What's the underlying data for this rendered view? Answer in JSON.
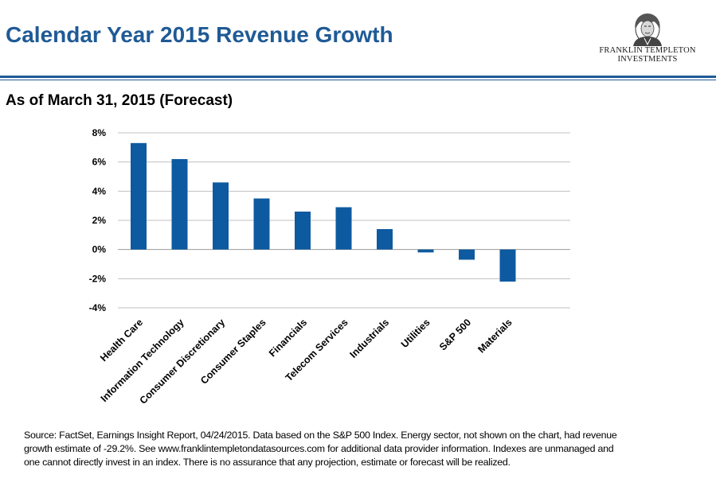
{
  "header": {
    "title": "Calendar Year 2015 Revenue Growth",
    "subtitle": "As of March 31, 2015 (Forecast)"
  },
  "logo": {
    "line1": "FRANKLIN TEMPLETON",
    "line2": "INVESTMENTS"
  },
  "colors": {
    "title": "#1f5a96",
    "bar": "#0e5aa0",
    "grid": "#c0c0c0"
  },
  "chart_data": {
    "type": "bar",
    "title": "",
    "xlabel": "",
    "ylabel": "",
    "categories": [
      "Health Care",
      "Information Technology",
      "Consumer Discretionary",
      "Consumer Staples",
      "Financials",
      "Telecom Services",
      "Industrials",
      "Utilities",
      "S&P 500",
      "Materials"
    ],
    "values": [
      7.3,
      6.2,
      4.6,
      3.5,
      2.6,
      2.9,
      1.4,
      -0.2,
      -0.7,
      -2.2
    ],
    "ylim": [
      -4,
      8
    ],
    "yticks": [
      8,
      6,
      4,
      2,
      0,
      -2,
      -4
    ],
    "ytick_labels": [
      "8%",
      "6%",
      "4%",
      "2%",
      "0%",
      "-2%",
      "-4%"
    ],
    "grid": true
  },
  "footer": {
    "source": "Source: FactSet, Earnings Insight Report, 04/24/2015. Data based on the S&P 500 Index. Energy sector, not shown on the chart, had revenue growth estimate of -29.2%. See www.franklintempletondatasources.com for additional data provider information. Indexes are unmanaged and one cannot directly invest in an index. There is no assurance that any projection, estimate or forecast will be realized."
  }
}
